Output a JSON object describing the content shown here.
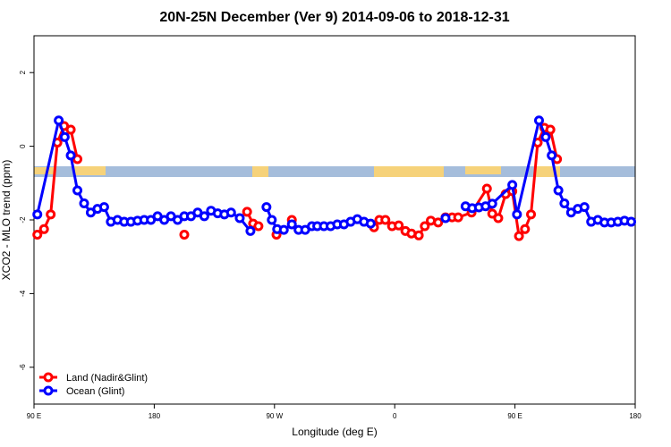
{
  "chart_data": {
    "type": "line",
    "title": "20N-25N December (Ver 9)   2014-09-06 to 2018-12-31",
    "x_label": "Longitude (deg E)",
    "y_label": "XCO2 - MLO trend (ppm)",
    "xlim": [
      90,
      540
    ],
    "ylim": [
      -7,
      3
    ],
    "xticks": [
      {
        "value": 90,
        "label": "90 E"
      },
      {
        "value": 180,
        "label": "180"
      },
      {
        "value": 270,
        "label": "90 W"
      },
      {
        "value": 360,
        "label": "0"
      },
      {
        "value": 450,
        "label": "90 E"
      },
      {
        "value": 540,
        "label": "180"
      }
    ],
    "yticks": [
      -6,
      -4,
      -2,
      0,
      2
    ],
    "legend": "bottom-left",
    "series": [
      {
        "name": "Land (Nadir&Glint)",
        "color": "#ff0000",
        "x": [
          92.5,
          97.5,
          102.5,
          107.5,
          112.5,
          117.5,
          122.5,
          null,
          202.5,
          null,
          249.5,
          254,
          258,
          null,
          271.5,
          null,
          283,
          null,
          344.5,
          348.5,
          353,
          358,
          363,
          368,
          372.5,
          378,
          382.5,
          387,
          392.5,
          398,
          403,
          407.5,
          417.5,
          429,
          433,
          437.5,
          443,
          448,
          453,
          457.5,
          462,
          467,
          472,
          476.5,
          481.5
        ],
        "values": [
          -2.4,
          -2.25,
          -1.85,
          0.1,
          0.55,
          0.45,
          -0.35,
          null,
          -2.4,
          null,
          -1.78,
          -2.1,
          -2.17,
          null,
          -2.4,
          null,
          -2.0,
          null,
          -2.2,
          -2.0,
          -2.0,
          -2.17,
          -2.15,
          -2.3,
          -2.37,
          -2.42,
          -2.17,
          -2.02,
          -2.07,
          -1.93,
          -1.93,
          -1.93,
          -1.8,
          -1.15,
          -1.83,
          -1.95,
          -1.3,
          -1.22,
          -2.44,
          -2.25,
          -1.85,
          0.1,
          0.5,
          0.45,
          -0.35
        ]
      },
      {
        "name": "Ocean (Glint)",
        "color": "#0000ff",
        "x": [
          92.5,
          108.5,
          113,
          117.5,
          122.5,
          127.5,
          132.5,
          137.5,
          142.5,
          147.5,
          152.5,
          157.5,
          162.5,
          167.5,
          172.5,
          177.5,
          182.5,
          187.5,
          192.5,
          197.5,
          202.5,
          207.5,
          212.5,
          217.5,
          222.5,
          227.5,
          232.5,
          237.5,
          244,
          252,
          null,
          264,
          268,
          272,
          277,
          283,
          288,
          293,
          298,
          302,
          307,
          312,
          317,
          322,
          327,
          332,
          337,
          342,
          null,
          398,
          null,
          413,
          418,
          423,
          428,
          433,
          448,
          451.5,
          468,
          473,
          477.5,
          482.5,
          487,
          492,
          497,
          502,
          507,
          512,
          517,
          522,
          527,
          532,
          537
        ],
        "values": [
          -1.85,
          0.7,
          0.25,
          -0.25,
          -1.2,
          -1.55,
          -1.8,
          -1.7,
          -1.65,
          -2.05,
          -2.0,
          -2.05,
          -2.05,
          -2.02,
          -2.0,
          -2.0,
          -1.9,
          -2.0,
          -1.9,
          -2.0,
          -1.9,
          -1.9,
          -1.8,
          -1.9,
          -1.75,
          -1.82,
          -1.85,
          -1.8,
          -1.95,
          -2.3,
          null,
          -1.65,
          -2.0,
          -2.25,
          -2.27,
          -2.12,
          -2.27,
          -2.27,
          -2.17,
          -2.17,
          -2.17,
          -2.17,
          -2.12,
          -2.12,
          -2.05,
          -1.98,
          -2.05,
          -2.1,
          null,
          -1.95,
          null,
          -1.63,
          -1.68,
          -1.66,
          -1.63,
          -1.56,
          -1.05,
          -1.85,
          0.7,
          0.25,
          -0.25,
          -1.2,
          -1.55,
          -1.8,
          -1.7,
          -1.65,
          -2.05,
          -2.0,
          -2.07,
          -2.07,
          -2.05,
          -2.02,
          -2.05
        ]
      }
    ]
  }
}
